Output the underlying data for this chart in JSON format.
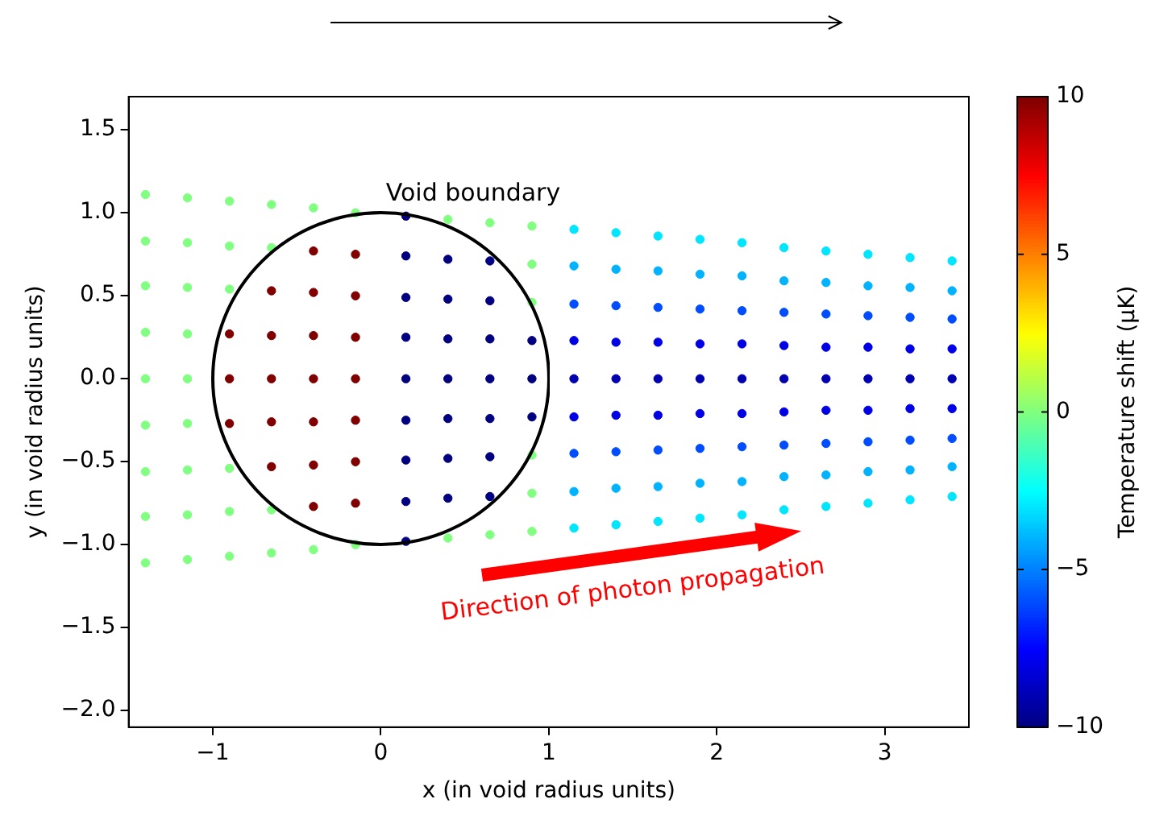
{
  "chart_data": {
    "type": "scatter",
    "xlabel": "x (in void radius units)",
    "ylabel": "y (in void radius units)",
    "clabel": "Temperature shift (μK)",
    "xlim": [
      -1.5,
      3.5
    ],
    "ylim": [
      -2.1,
      1.7
    ],
    "xticks": [
      {
        "value": -1,
        "label": "−1"
      },
      0,
      1,
      2,
      3
    ],
    "yticks": [
      {
        "value": -2,
        "label": "−2.0"
      },
      {
        "value": -1.5,
        "label": "−1.5"
      },
      {
        "value": -1,
        "label": "−1.0"
      },
      {
        "value": -0.5,
        "label": "−0.5"
      },
      {
        "value": 0,
        "label": "0.0"
      },
      {
        "value": 0.5,
        "label": "0.5"
      },
      {
        "value": 1,
        "label": "1.0"
      },
      {
        "value": 1.5,
        "label": "1.5"
      }
    ],
    "clim": [
      -10,
      10
    ],
    "cticks": [
      {
        "value": -10,
        "label": "−10"
      },
      {
        "value": -5,
        "label": "−5"
      },
      0,
      5,
      10
    ],
    "grid": false,
    "legend": false,
    "annotations": [
      "Void boundary",
      "Direction of photon propagation"
    ],
    "series": [
      {
        "type": "scatter",
        "marker": "circle",
        "colors": [
          "#80ff80",
          "#80ff80",
          "#80ff80",
          "#80ff80",
          "#80ff80",
          "#80ff80",
          "#80ff80",
          "#80ff80",
          "#80ff80",
          "#80ff80",
          "#80ff80",
          "#80ff80",
          "#80ff80",
          "#80ff80",
          "#80ff80",
          "#80ff80",
          "#80ff80",
          "#80ff80",
          "#80ff80",
          "#80ff80",
          "#80ff80",
          "#800000",
          "#800000",
          "#800000",
          "#80ff80",
          "#80ff80",
          "#80ff80",
          "#80ff80",
          "#80ff80",
          "#800000",
          "#800000",
          "#800000",
          "#800000",
          "#800000",
          "#80ff80",
          "#80ff80",
          "#80ff80",
          "#800000",
          "#800000",
          "#800000",
          "#800000",
          "#800000",
          "#800000",
          "#800000",
          "#80ff80",
          "#80ff80",
          "#800000",
          "#800000",
          "#800000",
          "#800000",
          "#800000",
          "#800000",
          "#800000",
          "#80ff80",
          "#000080",
          "#000080",
          "#000080",
          "#000080",
          "#000080",
          "#000080",
          "#000080",
          "#000080",
          "#000080",
          "#80ff80",
          "#000080",
          "#000080",
          "#000080",
          "#000080",
          "#000080",
          "#000080",
          "#000080",
          "#80ff80",
          "#80ff80",
          "#000080",
          "#000080",
          "#000080",
          "#000080",
          "#000080",
          "#000080",
          "#000080",
          "#80ff80",
          "#80ff80",
          "#80ff80",
          "#80ff80",
          "#000080",
          "#000080",
          "#000080",
          "#80ff80",
          "#80ff80",
          "#80ff80",
          "#00e6ff",
          "#00b3ff",
          "#004dff",
          "#0000e6",
          "#0000b3",
          "#0000e6",
          "#004dff",
          "#00b3ff",
          "#00e6ff",
          "#00e6ff",
          "#00b3ff",
          "#004dff",
          "#0000e6",
          "#0000b3",
          "#0000e6",
          "#004dff",
          "#00b3ff",
          "#00e6ff",
          "#00e6ff",
          "#00b3ff",
          "#004dff",
          "#0000e6",
          "#0000b3",
          "#0000e6",
          "#004dff",
          "#00b3ff",
          "#00e6ff",
          "#00e6ff",
          "#00b3ff",
          "#004dff",
          "#0000e6",
          "#0000b3",
          "#0000e6",
          "#004dff",
          "#00b3ff",
          "#00e6ff",
          "#00e6ff",
          "#00b3ff",
          "#004dff",
          "#0000e6",
          "#0000b3",
          "#0000e6",
          "#004dff",
          "#00b3ff",
          "#00e6ff",
          "#00e6ff",
          "#00b3ff",
          "#004dff",
          "#0000e6",
          "#0000b3",
          "#0000e6",
          "#004dff",
          "#00b3ff",
          "#00e6ff",
          "#00e6ff",
          "#00b3ff",
          "#004dff",
          "#0000e6",
          "#0000b3",
          "#0000e6",
          "#004dff",
          "#00b3ff",
          "#00e6ff",
          "#00e6ff",
          "#00b3ff",
          "#004dff",
          "#0000e6",
          "#0000b3",
          "#0000e6",
          "#004dff",
          "#00b3ff",
          "#00e6ff",
          "#00e6ff",
          "#00b3ff",
          "#004dff",
          "#0000e6",
          "#0000b3",
          "#0000e6",
          "#004dff",
          "#00b3ff",
          "#00e6ff",
          "#00e6ff",
          "#00b3ff",
          "#004dff",
          "#0000e6",
          "#0000b3",
          "#0000e6",
          "#004dff",
          "#00b3ff",
          "#00e6ff"
        ],
        "x": [
          -1.4,
          -1.4,
          -1.4,
          -1.4,
          -1.4,
          -1.4,
          -1.4,
          -1.4,
          -1.4,
          -1.15,
          -1.15,
          -1.15,
          -1.15,
          -1.15,
          -1.15,
          -1.15,
          -1.15,
          -1.15,
          -0.9,
          -0.9,
          -0.9,
          -0.9,
          -0.9,
          -0.9,
          -0.9,
          -0.9,
          -0.9,
          -0.65,
          -0.65,
          -0.65,
          -0.65,
          -0.65,
          -0.65,
          -0.65,
          -0.65,
          -0.65,
          -0.4,
          -0.4,
          -0.4,
          -0.4,
          -0.4,
          -0.4,
          -0.4,
          -0.4,
          -0.4,
          -0.15,
          -0.15,
          -0.15,
          -0.15,
          -0.15,
          -0.15,
          -0.15,
          -0.15,
          -0.15,
          0.15,
          0.15,
          0.15,
          0.15,
          0.15,
          0.15,
          0.15,
          0.15,
          0.15,
          0.4,
          0.4,
          0.4,
          0.4,
          0.4,
          0.4,
          0.4,
          0.4,
          0.4,
          0.65,
          0.65,
          0.65,
          0.65,
          0.65,
          0.65,
          0.65,
          0.65,
          0.65,
          0.9,
          0.9,
          0.9,
          0.9,
          0.9,
          0.9,
          0.9,
          0.9,
          0.9,
          1.15,
          1.15,
          1.15,
          1.15,
          1.15,
          1.15,
          1.15,
          1.15,
          1.15,
          1.4,
          1.4,
          1.4,
          1.4,
          1.4,
          1.4,
          1.4,
          1.4,
          1.4,
          1.65,
          1.65,
          1.65,
          1.65,
          1.65,
          1.65,
          1.65,
          1.65,
          1.65,
          1.9,
          1.9,
          1.9,
          1.9,
          1.9,
          1.9,
          1.9,
          1.9,
          1.9,
          2.15,
          2.15,
          2.15,
          2.15,
          2.15,
          2.15,
          2.15,
          2.15,
          2.15,
          2.4,
          2.4,
          2.4,
          2.4,
          2.4,
          2.4,
          2.4,
          2.4,
          2.4,
          2.65,
          2.65,
          2.65,
          2.65,
          2.65,
          2.65,
          2.65,
          2.65,
          2.65,
          2.9,
          2.9,
          2.9,
          2.9,
          2.9,
          2.9,
          2.9,
          2.9,
          2.9,
          3.15,
          3.15,
          3.15,
          3.15,
          3.15,
          3.15,
          3.15,
          3.15,
          3.15,
          3.4,
          3.4,
          3.4,
          3.4,
          3.4,
          3.4,
          3.4,
          3.4,
          3.4
        ],
        "values": [
          1.11,
          0.83,
          0.56,
          0.28,
          0,
          -0.28,
          -0.56,
          -0.83,
          -1.11,
          1.09,
          0.82,
          0.55,
          0.27,
          0,
          -0.27,
          -0.55,
          -0.82,
          -1.09,
          1.07,
          0.8,
          0.54,
          0.27,
          0,
          -0.27,
          -0.54,
          -0.8,
          -1.07,
          1.05,
          0.79,
          0.53,
          0.26,
          0,
          -0.26,
          -0.53,
          -0.79,
          -1.05,
          1.03,
          0.77,
          0.52,
          0.26,
          0,
          -0.26,
          -0.52,
          -0.77,
          -1.03,
          1,
          0.75,
          0.5,
          0.25,
          0,
          -0.25,
          -0.5,
          -0.75,
          -1,
          0.98,
          0.74,
          0.49,
          0.25,
          0,
          -0.25,
          -0.49,
          -0.74,
          -0.98,
          0.96,
          0.72,
          0.48,
          0.24,
          0,
          -0.24,
          -0.48,
          -0.72,
          -0.96,
          0.94,
          0.71,
          0.47,
          0.24,
          0,
          -0.24,
          -0.47,
          -0.71,
          -0.94,
          0.92,
          0.69,
          0.46,
          0.23,
          0,
          -0.23,
          -0.46,
          -0.69,
          -0.92,
          0.9,
          0.68,
          0.45,
          0.23,
          0,
          -0.23,
          -0.45,
          -0.68,
          -0.9,
          0.88,
          0.66,
          0.44,
          0.22,
          0,
          -0.22,
          -0.44,
          -0.66,
          -0.88,
          0.86,
          0.65,
          0.43,
          0.22,
          0,
          -0.22,
          -0.43,
          -0.65,
          -0.86,
          0.84,
          0.63,
          0.42,
          0.21,
          0,
          -0.21,
          -0.42,
          -0.63,
          -0.84,
          0.82,
          0.62,
          0.41,
          0.21,
          0,
          -0.21,
          -0.41,
          -0.62,
          -0.82,
          0.79,
          0.59,
          0.4,
          0.2,
          0,
          -0.2,
          -0.4,
          -0.59,
          -0.79,
          0.77,
          0.58,
          0.39,
          0.19,
          0,
          -0.19,
          -0.39,
          -0.58,
          -0.77,
          0.75,
          0.56,
          0.38,
          0.19,
          0,
          -0.19,
          -0.38,
          -0.56,
          -0.75,
          0.73,
          0.55,
          0.37,
          0.18,
          0,
          -0.18,
          -0.37,
          -0.55,
          -0.73,
          0.71,
          0.53,
          0.36,
          0.18,
          0,
          -0.18,
          -0.36,
          -0.53,
          -0.71
        ],
        "cvalues": [
          0,
          0,
          0,
          0,
          0,
          0,
          0,
          0,
          0,
          0,
          0,
          0,
          0,
          0,
          0,
          0,
          0,
          0,
          0,
          0,
          0,
          10,
          10,
          10,
          0,
          0,
          0,
          0,
          0,
          10,
          10,
          10,
          10,
          10,
          0,
          0,
          0,
          10,
          10,
          10,
          10,
          10,
          10,
          10,
          0,
          0,
          10,
          10,
          10,
          10,
          10,
          10,
          10,
          0,
          -10,
          -10,
          -10,
          -10,
          -10,
          -10,
          -10,
          -10,
          -10,
          0,
          -10,
          -10,
          -10,
          -10,
          -10,
          -10,
          -10,
          0,
          0,
          -10,
          -10,
          -10,
          -10,
          -10,
          -10,
          -10,
          0,
          0,
          0,
          0,
          -10,
          -10,
          -10,
          0,
          0,
          0,
          -3,
          -4,
          -6,
          -8,
          -9,
          -8,
          -6,
          -4,
          -3,
          -3,
          -4,
          -6,
          -8,
          -9,
          -8,
          -6,
          -4,
          -3,
          -3,
          -4,
          -6,
          -8,
          -9,
          -8,
          -6,
          -4,
          -3,
          -3,
          -4,
          -6,
          -8,
          -9,
          -8,
          -6,
          -4,
          -3,
          -3,
          -4,
          -6,
          -8,
          -9,
          -8,
          -6,
          -4,
          -3,
          -3,
          -4,
          -6,
          -8,
          -9,
          -8,
          -6,
          -4,
          -3,
          -3,
          -4,
          -6,
          -8,
          -9,
          -8,
          -6,
          -4,
          -3,
          -3,
          -4,
          -6,
          -8,
          -9,
          -8,
          -6,
          -4,
          -3,
          -3,
          -4,
          -6,
          -8,
          -9,
          -8,
          -6,
          -4,
          -3,
          -3,
          -4,
          -6,
          -8,
          -9,
          -8,
          -6,
          -4,
          -3
        ]
      }
    ]
  }
}
